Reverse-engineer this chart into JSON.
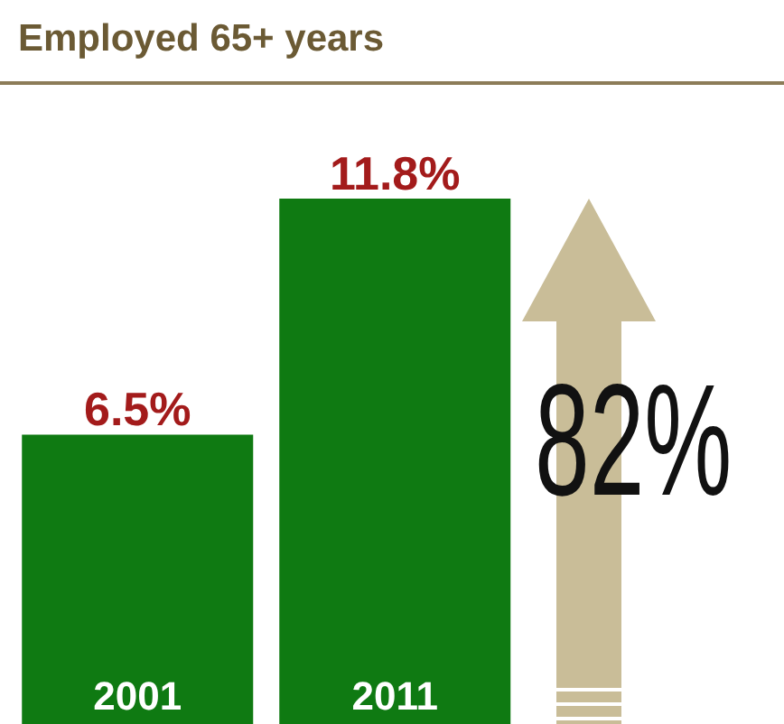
{
  "chart_data": {
    "type": "bar",
    "title": "Employed 65+ years",
    "categories": [
      "2001",
      "2011"
    ],
    "values": [
      6.5,
      11.8
    ],
    "color": "#0f7a12",
    "value_labels": [
      "6.5%",
      "11.8%"
    ],
    "annotations": [
      "82%"
    ]
  }
}
